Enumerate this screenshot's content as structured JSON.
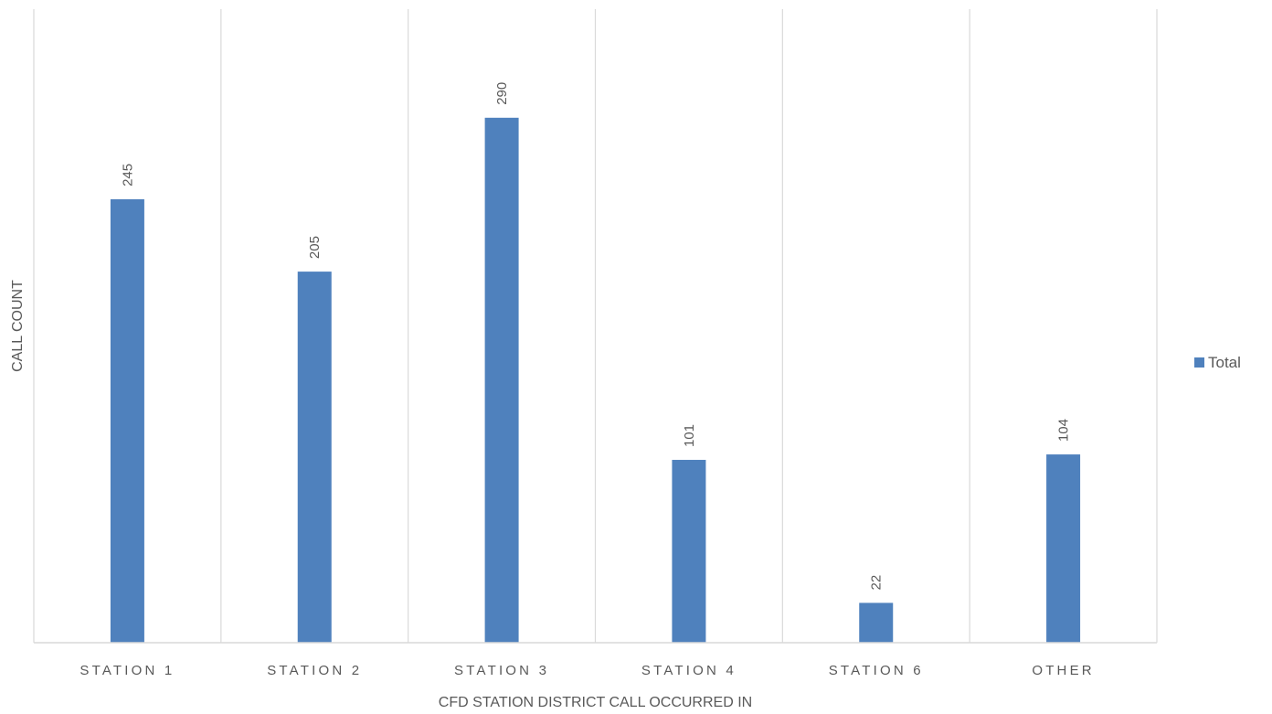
{
  "chart_data": {
    "type": "bar",
    "title": "",
    "xlabel": "CFD STATION DISTRICT CALL OCCURRED IN",
    "ylabel": "CALL COUNT",
    "categories": [
      "STATION 1",
      "STATION 2",
      "STATION 3",
      "STATION 4",
      "STATION 6",
      "OTHER"
    ],
    "series": [
      {
        "name": "Total",
        "values": [
          245,
          205,
          290,
          101,
          22,
          104
        ],
        "color": "#4F81BD"
      }
    ],
    "ylim": [
      0,
      350
    ],
    "grid": "vertical category separators",
    "legend_position": "right",
    "data_labels": true
  }
}
